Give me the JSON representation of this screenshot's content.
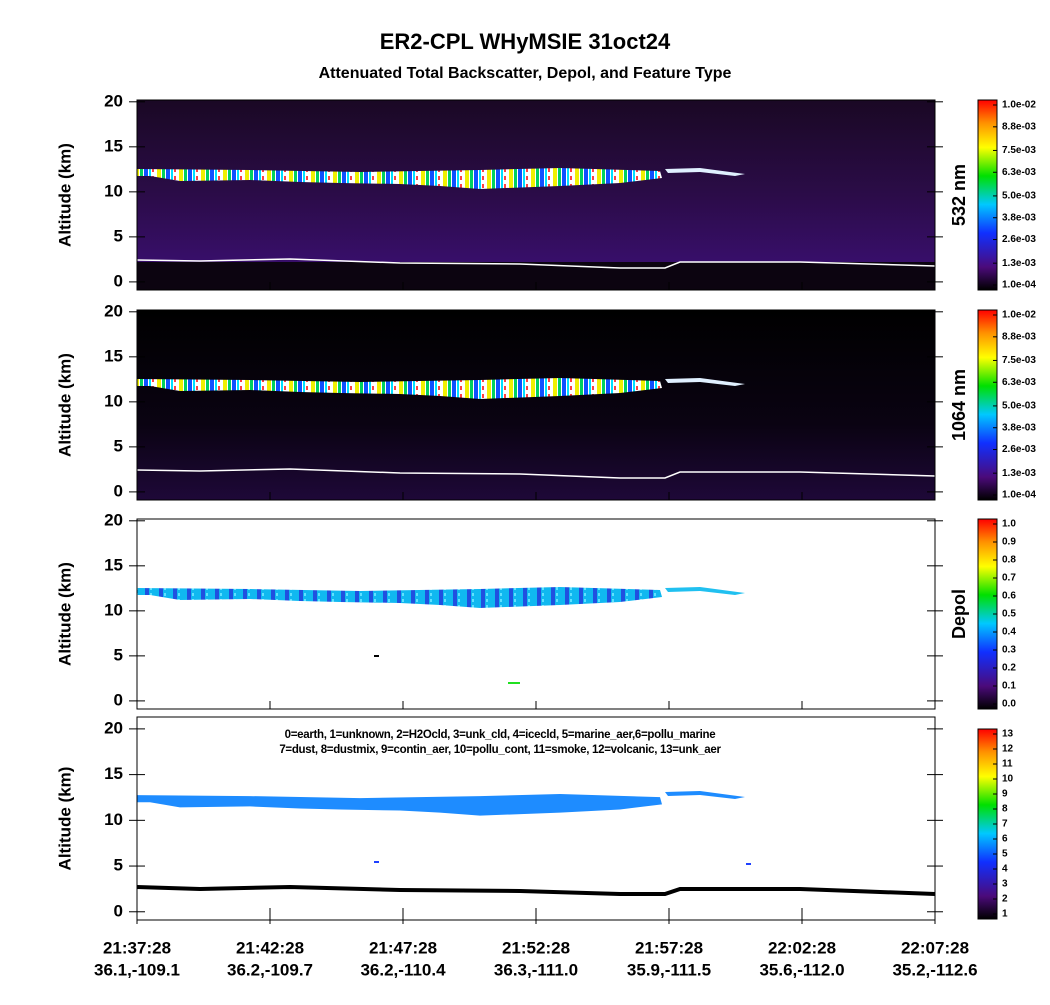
{
  "title": "ER2-CPL WHyMSIE 31oct24",
  "subtitle": "Attenuated Total Backscatter, Depol, and Feature Type",
  "chart_data": [
    {
      "type": "heatmap",
      "ylabel": "Altitude (km)",
      "ylim": [
        -0.9,
        20.2
      ],
      "yticks": [
        0,
        5,
        10,
        15,
        20
      ],
      "colorbar_label": "532 nm",
      "clim": [
        0.0001,
        0.01
      ],
      "colorbar_ticks": [
        {
          "value": 0.0001,
          "label": "1.0e-04"
        },
        {
          "value": 0.0013,
          "label": "1.3e-03"
        },
        {
          "value": 0.0026,
          "label": "2.6e-03"
        },
        {
          "value": 0.0038,
          "label": "3.8e-03"
        },
        {
          "value": 0.005,
          "label": "5.0e-03"
        },
        {
          "value": 0.0063,
          "label": "6.3e-03"
        },
        {
          "value": 0.0075,
          "label": "7.5e-03"
        },
        {
          "value": 0.0088,
          "label": "8.8e-03"
        },
        {
          "value": 0.01,
          "label": "1.0e-02"
        }
      ]
    },
    {
      "type": "heatmap",
      "ylabel": "Altitude (km)",
      "ylim": [
        -0.9,
        20.2
      ],
      "yticks": [
        0,
        5,
        10,
        15,
        20
      ],
      "colorbar_label": "1064 nm",
      "clim": [
        0.0001,
        0.01
      ],
      "colorbar_ticks": [
        {
          "value": 0.0001,
          "label": "1.0e-04"
        },
        {
          "value": 0.0013,
          "label": "1.3e-03"
        },
        {
          "value": 0.0026,
          "label": "2.6e-03"
        },
        {
          "value": 0.0038,
          "label": "3.8e-03"
        },
        {
          "value": 0.005,
          "label": "5.0e-03"
        },
        {
          "value": 0.0063,
          "label": "6.3e-03"
        },
        {
          "value": 0.0075,
          "label": "7.5e-03"
        },
        {
          "value": 0.0088,
          "label": "8.8e-03"
        },
        {
          "value": 0.01,
          "label": "1.0e-02"
        }
      ]
    },
    {
      "type": "heatmap",
      "ylabel": "Altitude (km)",
      "ylim": [
        -0.9,
        20.2
      ],
      "yticks": [
        0,
        5,
        10,
        15,
        20
      ],
      "colorbar_label": "Depol",
      "clim": [
        0,
        1
      ],
      "colorbar_ticks": [
        {
          "value": 0,
          "label": "0.0"
        },
        0.1,
        0.2,
        0.3,
        0.4,
        0.5,
        0.6,
        0.7,
        0.8,
        0.9,
        {
          "value": 1,
          "label": "1.0"
        }
      ]
    },
    {
      "type": "heatmap",
      "ylabel": "Altitude (km)",
      "ylim": [
        -0.9,
        21.3
      ],
      "yticks": [
        0,
        5,
        10,
        15,
        20
      ],
      "legend_text": [
        "0=earth, 1=unknown, 2=H2Ocld, 3=unk_cld, 4=icecld, 5=marine_aer,6=pollu_marine",
        "7=dust, 8=dustmix, 9=contin_aer, 10=pollu_cont, 11=smoke, 12=volcanic, 13=unk_aer"
      ],
      "clim": [
        1,
        13
      ],
      "colorbar_ticks": [
        1,
        2,
        3,
        4,
        5,
        6,
        7,
        8,
        9,
        10,
        11,
        12,
        13
      ],
      "xticks": [
        "21:37:28",
        "21:42:28",
        "21:47:28",
        "21:52:28",
        "21:57:28",
        "22:02:28",
        "22:07:28"
      ],
      "xtick_sublabels": [
        "36.1,-109.1",
        "36.2,-109.7",
        "36.2,-110.4",
        "36.3,-111.0",
        "35.9,-111.5",
        "35.6,-112.0",
        "35.2,-112.6"
      ]
    }
  ]
}
